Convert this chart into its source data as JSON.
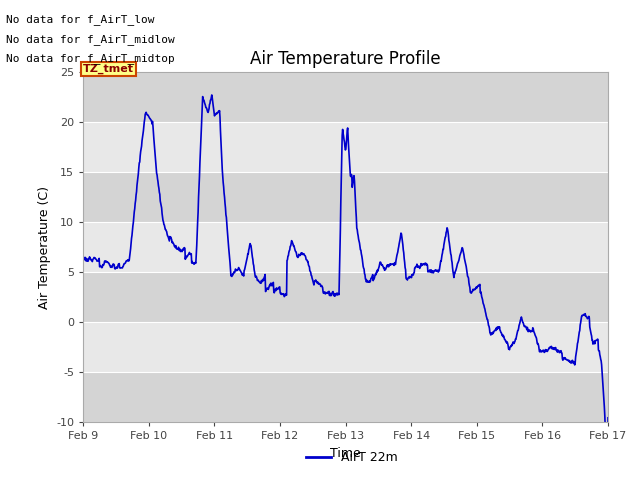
{
  "title": "Air Temperature Profile",
  "xlabel": "Time",
  "ylabel": "Air Temperature (C)",
  "ylim": [
    -10,
    25
  ],
  "yticks": [
    -10,
    -5,
    0,
    5,
    10,
    15,
    20,
    25
  ],
  "xtick_labels": [
    "Feb 9",
    "Feb 10",
    "Feb 11",
    "Feb 12",
    "Feb 13",
    "Feb 14",
    "Feb 15",
    "Feb 16",
    "Feb 17"
  ],
  "line_color": "#0000cc",
  "line_width": 1.2,
  "legend_label": "AirT 22m",
  "no_data_texts": [
    "No data for f_AirT_low",
    "No data for f_AirT_midlow",
    "No data for f_AirT_midtop"
  ],
  "tz_label": "TZ_tmet",
  "bg_color": "#ffffff",
  "plot_bg_color": "#e8e8e8",
  "grid_color": "#ffffff",
  "band_color": "#d4d4d4",
  "title_fontsize": 12,
  "axis_fontsize": 9,
  "tick_fontsize": 8,
  "no_data_fontsize": 8
}
